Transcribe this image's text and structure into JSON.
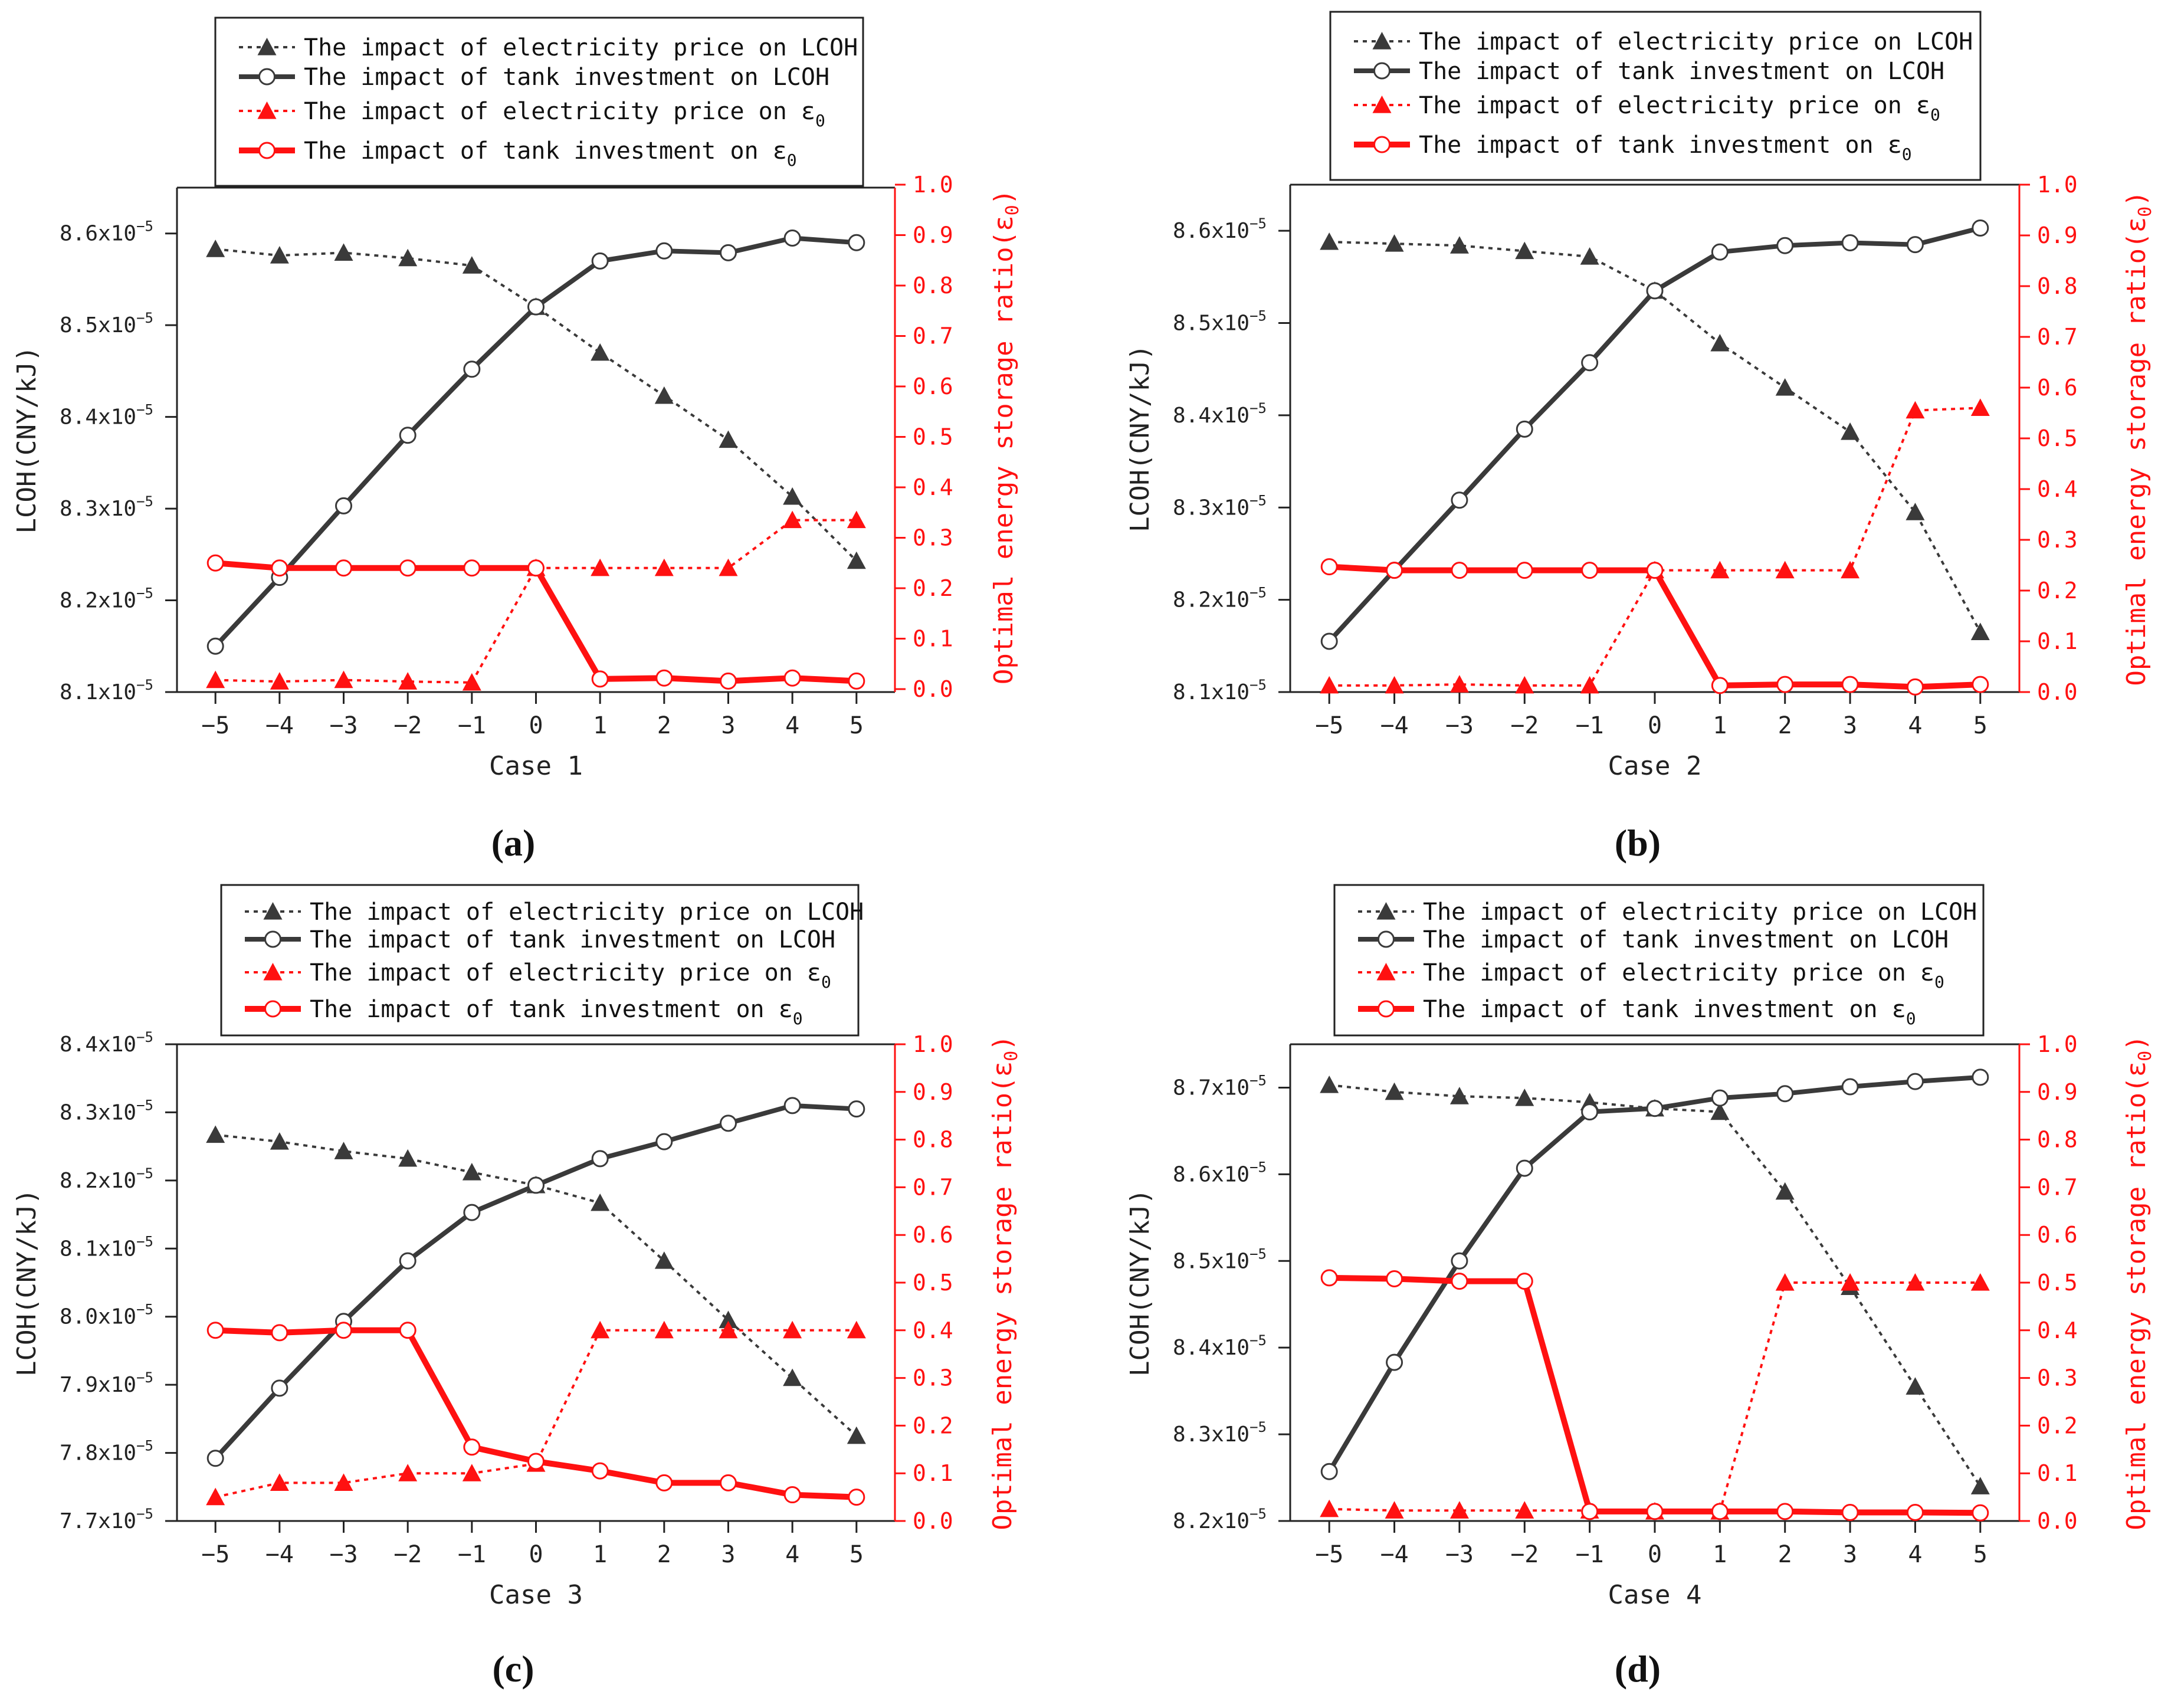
{
  "colors": {
    "black": "#3a3a3a",
    "red": "#ff1111",
    "white": "#ffffff",
    "frame": "#222222"
  },
  "chart_data": [
    {
      "panel_label": "(a)",
      "type": "line",
      "xlabel": "Case 1",
      "ylabel_left": "LCOH(CNY/kJ)",
      "ylabel_right": "Optimal energy storage ratio(ε",
      "ylabel_right_sub": "0",
      "ylabel_right_close": ")",
      "x": [
        -5,
        -4,
        -3,
        -2,
        -1,
        0,
        1,
        2,
        3,
        4,
        5
      ],
      "xticks": [
        "−5",
        "−4",
        "−3",
        "−2",
        "−1",
        "0",
        "1",
        "2",
        "3",
        "4",
        "5"
      ],
      "ylim_left": [
        8.1,
        8.65
      ],
      "yticks_left": [
        8.1,
        8.2,
        8.3,
        8.4,
        8.5,
        8.6
      ],
      "yticklabels_left": [
        "8.1x10",
        "8.2x10",
        "8.3x10",
        "8.4x10",
        "8.5x10",
        "8.6x10"
      ],
      "ytick_exponent": "−5",
      "ylim_right": [
        0,
        1
      ],
      "yticks_right": [
        0,
        0.1,
        0.2,
        0.3,
        0.4,
        0.5,
        0.6,
        0.7,
        0.8,
        0.9,
        1.0
      ],
      "yticklabels_right": [
        "0.0",
        "0.1",
        "0.2",
        "0.3",
        "0.4",
        "0.5",
        "0.6",
        "0.7",
        "0.8",
        "0.9",
        "1.0"
      ],
      "legend": [
        "The impact of electricity price on LCOH",
        "The impact of tank investment on LCOH",
        "The impact of electricity price on ε",
        "The impact of tank investment on ε"
      ],
      "legend_sub": "0",
      "series": [
        {
          "name": "The impact of electricity price on LCOH",
          "axis": "left",
          "marker": "triangle",
          "style": "dotted",
          "color": "#3a3a3a",
          "values": [
            8.583,
            8.576,
            8.579,
            8.573,
            8.565,
            8.52,
            8.47,
            8.423,
            8.375,
            8.313,
            8.243
          ]
        },
        {
          "name": "The impact of tank investment on LCOH",
          "axis": "left",
          "marker": "circle",
          "style": "solid",
          "color": "#3a3a3a",
          "values": [
            8.15,
            8.225,
            8.303,
            8.38,
            8.452,
            8.52,
            8.57,
            8.581,
            8.579,
            8.595,
            8.59
          ]
        },
        {
          "name": "The impact of electricity price on ε0",
          "axis": "right",
          "marker": "triangle",
          "style": "dotted",
          "color": "#ff1111",
          "values": [
            0.018,
            0.015,
            0.018,
            0.015,
            0.013,
            0.24,
            0.24,
            0.24,
            0.24,
            0.335,
            0.335
          ]
        },
        {
          "name": "The impact of tank investment on ε0",
          "axis": "right",
          "marker": "circle",
          "style": "solid",
          "color": "#ff1111",
          "values": [
            0.25,
            0.24,
            0.24,
            0.24,
            0.24,
            0.24,
            0.02,
            0.022,
            0.016,
            0.022,
            0.016
          ]
        }
      ]
    },
    {
      "panel_label": "(b)",
      "type": "line",
      "xlabel": "Case 2",
      "ylabel_left": "LCOH(CNY/kJ)",
      "ylabel_right": "Optimal energy storage ratio(ε",
      "ylabel_right_sub": "0",
      "ylabel_right_close": ")",
      "x": [
        -5,
        -4,
        -3,
        -2,
        -1,
        0,
        1,
        2,
        3,
        4,
        5
      ],
      "xticks": [
        "−5",
        "−4",
        "−3",
        "−2",
        "−1",
        "0",
        "1",
        "2",
        "3",
        "4",
        "5"
      ],
      "ylim_left": [
        8.1,
        8.65
      ],
      "yticks_left": [
        8.1,
        8.2,
        8.3,
        8.4,
        8.5,
        8.6
      ],
      "yticklabels_left": [
        "8.1x10",
        "8.2x10",
        "8.3x10",
        "8.4x10",
        "8.5x10",
        "8.6x10"
      ],
      "ytick_exponent": "−5",
      "ylim_right": [
        0,
        1
      ],
      "yticks_right": [
        0,
        0.1,
        0.2,
        0.3,
        0.4,
        0.5,
        0.6,
        0.7,
        0.8,
        0.9,
        1.0
      ],
      "yticklabels_right": [
        "0.0",
        "0.1",
        "0.2",
        "0.3",
        "0.4",
        "0.5",
        "0.6",
        "0.7",
        "0.8",
        "0.9",
        "1.0"
      ],
      "legend": [
        "The impact of electricity price on LCOH",
        "The impact of tank investment on LCOH",
        "The impact of electricity price on ε",
        "The impact of tank investment on ε"
      ],
      "legend_sub": "0",
      "series": [
        {
          "name": "The impact of electricity price on LCOH",
          "axis": "left",
          "marker": "triangle",
          "style": "dotted",
          "color": "#3a3a3a",
          "values": [
            8.588,
            8.586,
            8.584,
            8.578,
            8.572,
            8.535,
            8.478,
            8.43,
            8.382,
            8.295,
            8.165
          ]
        },
        {
          "name": "The impact of tank investment on LCOH",
          "axis": "left",
          "marker": "circle",
          "style": "solid",
          "color": "#3a3a3a",
          "values": [
            8.155,
            8.232,
            8.308,
            8.385,
            8.457,
            8.535,
            8.577,
            8.584,
            8.587,
            8.585,
            8.603
          ]
        },
        {
          "name": "The impact of electricity price on ε0",
          "axis": "right",
          "marker": "triangle",
          "style": "dotted",
          "color": "#ff1111",
          "values": [
            0.013,
            0.013,
            0.015,
            0.013,
            0.013,
            0.24,
            0.24,
            0.24,
            0.24,
            0.555,
            0.56
          ]
        },
        {
          "name": "The impact of tank investment on ε0",
          "axis": "right",
          "marker": "circle",
          "style": "solid",
          "color": "#ff1111",
          "values": [
            0.247,
            0.24,
            0.24,
            0.24,
            0.24,
            0.24,
            0.013,
            0.015,
            0.015,
            0.01,
            0.015
          ]
        }
      ]
    },
    {
      "panel_label": "(c)",
      "type": "line",
      "xlabel": "Case 3",
      "ylabel_left": "LCOH(CNY/kJ)",
      "ylabel_right": "Optimal energy storage ratio(ε",
      "ylabel_right_sub": "0",
      "ylabel_right_close": ")",
      "x": [
        -5,
        -4,
        -3,
        -2,
        -1,
        0,
        1,
        2,
        3,
        4,
        5
      ],
      "xticks": [
        "−5",
        "−4",
        "−3",
        "−2",
        "−1",
        "0",
        "1",
        "2",
        "3",
        "4",
        "5"
      ],
      "ylim_left": [
        7.7,
        8.4
      ],
      "yticks_left": [
        7.7,
        7.8,
        7.9,
        8.0,
        8.1,
        8.2,
        8.3,
        8.4
      ],
      "yticklabels_left": [
        "7.7x10",
        "7.8x10",
        "7.9x10",
        "8.0x10",
        "8.1x10",
        "8.2x10",
        "8.3x10",
        "8.4x10"
      ],
      "ytick_exponent": "−5",
      "ylim_right": [
        0,
        1
      ],
      "yticks_right": [
        0,
        0.1,
        0.2,
        0.3,
        0.4,
        0.5,
        0.6,
        0.7,
        0.8,
        0.9,
        1.0
      ],
      "yticklabels_right": [
        "0.0",
        "0.1",
        "0.2",
        "0.3",
        "0.4",
        "0.5",
        "0.6",
        "0.7",
        "0.8",
        "0.9",
        "1.0"
      ],
      "legend": [
        "The impact of electricity price on LCOH",
        "The impact of tank investment on LCOH",
        "The impact of electricity price on ε",
        "The impact of tank investment on ε"
      ],
      "legend_sub": "0",
      "series": [
        {
          "name": "The impact of electricity price on LCOH",
          "axis": "left",
          "marker": "triangle",
          "style": "dotted",
          "color": "#3a3a3a",
          "values": [
            8.267,
            8.257,
            8.243,
            8.232,
            8.212,
            8.193,
            8.167,
            8.082,
            7.995,
            7.91,
            7.825
          ]
        },
        {
          "name": "The impact of tank investment on LCOH",
          "axis": "left",
          "marker": "circle",
          "style": "solid",
          "color": "#3a3a3a",
          "values": [
            7.792,
            7.895,
            7.993,
            8.082,
            8.153,
            8.193,
            8.232,
            8.257,
            8.284,
            8.31,
            8.305
          ]
        },
        {
          "name": "The impact of electricity price on ε0",
          "axis": "right",
          "marker": "triangle",
          "style": "dotted",
          "color": "#ff1111",
          "values": [
            0.05,
            0.08,
            0.08,
            0.1,
            0.1,
            0.12,
            0.4,
            0.4,
            0.4,
            0.4,
            0.4
          ]
        },
        {
          "name": "The impact of tank investment on ε0",
          "axis": "right",
          "marker": "circle",
          "style": "solid",
          "color": "#ff1111",
          "values": [
            0.4,
            0.395,
            0.4,
            0.4,
            0.155,
            0.125,
            0.105,
            0.08,
            0.08,
            0.055,
            0.05
          ]
        }
      ]
    },
    {
      "panel_label": "(d)",
      "type": "line",
      "xlabel": "Case 4",
      "ylabel_left": "LCOH(CNY/kJ)",
      "ylabel_right": "Optimal energy storage ratio(ε",
      "ylabel_right_sub": "0",
      "ylabel_right_close": ")",
      "x": [
        -5,
        -4,
        -3,
        -2,
        -1,
        0,
        1,
        2,
        3,
        4,
        5
      ],
      "xticks": [
        "−5",
        "−4",
        "−3",
        "−2",
        "−1",
        "0",
        "1",
        "2",
        "3",
        "4",
        "5"
      ],
      "ylim_left": [
        8.2,
        8.75
      ],
      "yticks_left": [
        8.2,
        8.3,
        8.4,
        8.5,
        8.6,
        8.7
      ],
      "yticklabels_left": [
        "8.2x10",
        "8.3x10",
        "8.4x10",
        "8.5x10",
        "8.6x10",
        "8.7x10"
      ],
      "ytick_exponent": "−5",
      "ylim_right": [
        0,
        1
      ],
      "yticks_right": [
        0,
        0.1,
        0.2,
        0.3,
        0.4,
        0.5,
        0.6,
        0.7,
        0.8,
        0.9,
        1.0
      ],
      "yticklabels_right": [
        "0.0",
        "0.1",
        "0.2",
        "0.3",
        "0.4",
        "0.5",
        "0.6",
        "0.7",
        "0.8",
        "0.9",
        "1.0"
      ],
      "legend": [
        "The impact of electricity price on LCOH",
        "The impact of tank investment on LCOH",
        "The impact of electricity price on ε",
        "The impact of tank investment on ε"
      ],
      "legend_sub": "0",
      "series": [
        {
          "name": "The impact of electricity price on LCOH",
          "axis": "left",
          "marker": "triangle",
          "style": "dotted",
          "color": "#3a3a3a",
          "values": [
            8.703,
            8.695,
            8.69,
            8.688,
            8.683,
            8.676,
            8.672,
            8.58,
            8.47,
            8.355,
            8.24
          ]
        },
        {
          "name": "The impact of tank investment on LCOH",
          "axis": "left",
          "marker": "circle",
          "style": "solid",
          "color": "#3a3a3a",
          "values": [
            8.257,
            8.383,
            8.5,
            8.607,
            8.672,
            8.676,
            8.688,
            8.693,
            8.701,
            8.707,
            8.712
          ]
        },
        {
          "name": "The impact of electricity price on ε0",
          "axis": "right",
          "marker": "triangle",
          "style": "dotted",
          "color": "#ff1111",
          "values": [
            0.025,
            0.022,
            0.022,
            0.022,
            0.022,
            0.02,
            0.02,
            0.5,
            0.5,
            0.5,
            0.5
          ]
        },
        {
          "name": "The impact of tank investment on ε0",
          "axis": "right",
          "marker": "circle",
          "style": "solid",
          "color": "#ff1111",
          "values": [
            0.51,
            0.508,
            0.503,
            0.503,
            0.02,
            0.02,
            0.02,
            0.02,
            0.018,
            0.018,
            0.017
          ]
        }
      ]
    }
  ]
}
